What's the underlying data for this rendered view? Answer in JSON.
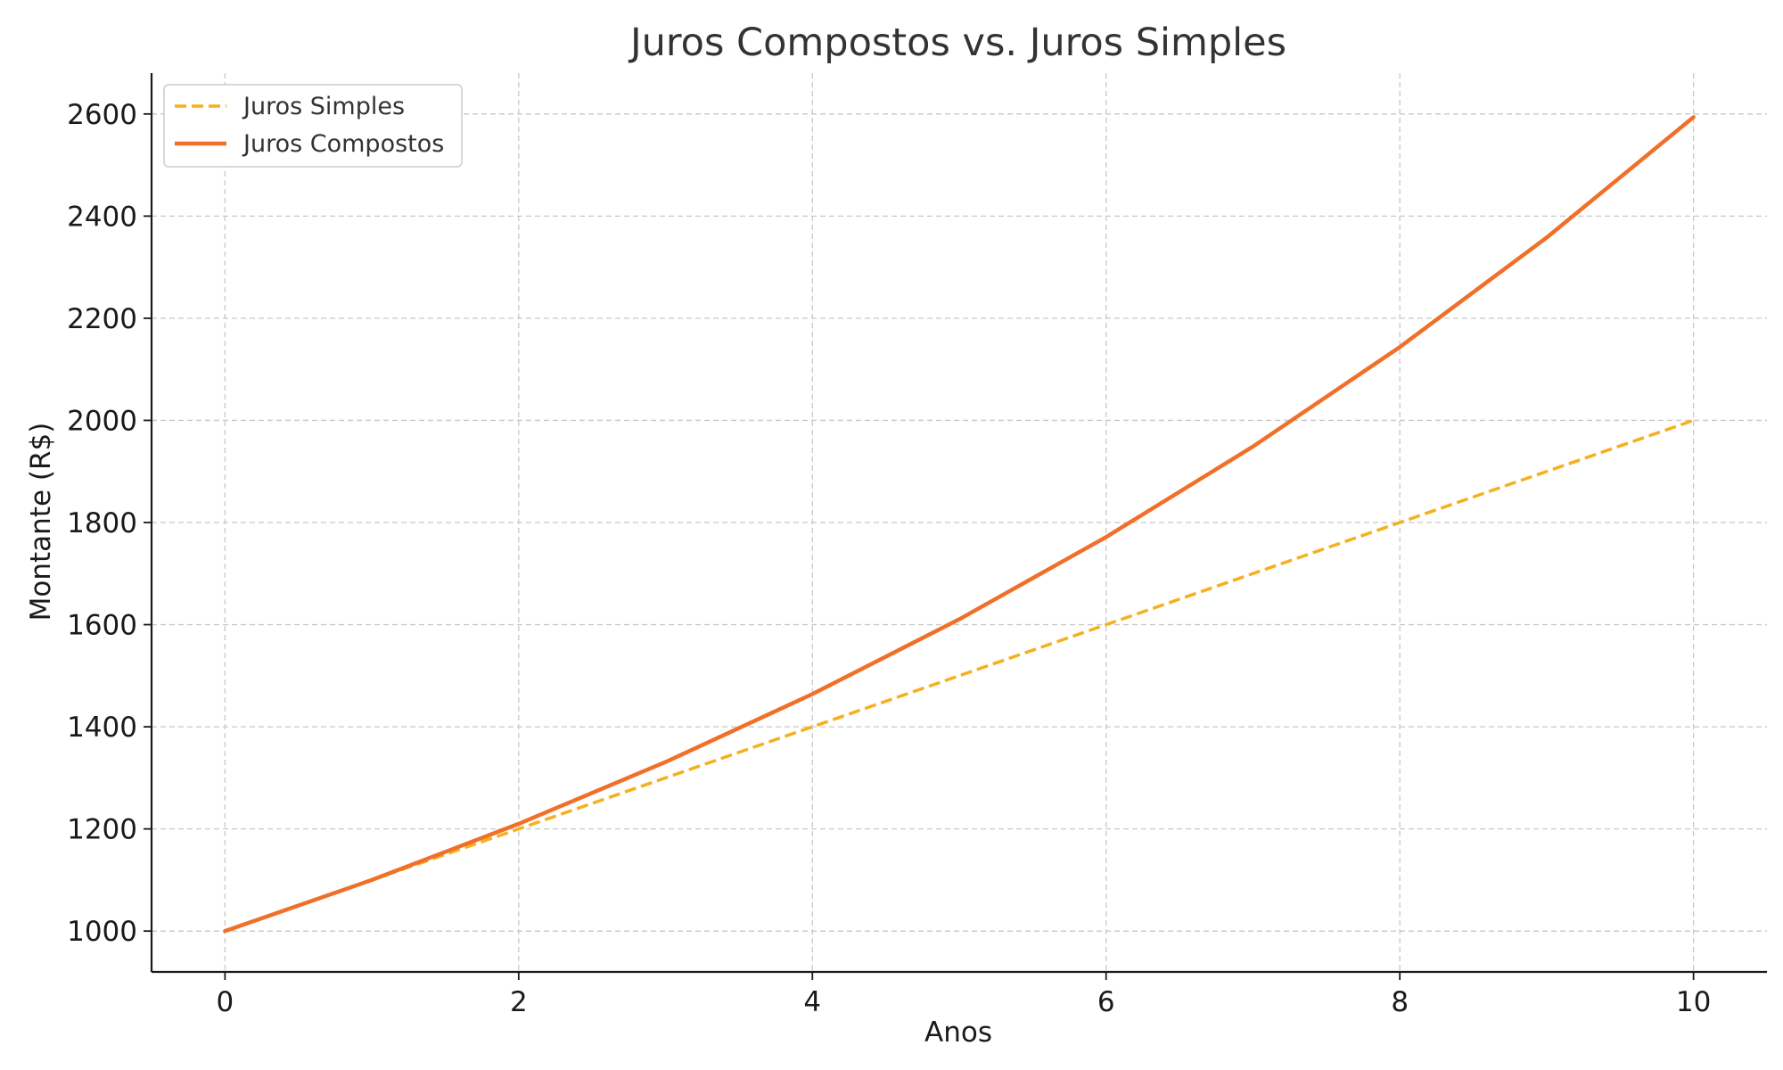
{
  "chart_data": {
    "type": "line",
    "title": "Juros Compostos vs. Juros Simples",
    "xlabel": "Anos",
    "ylabel": "Montante (R$)",
    "x": [
      0,
      1,
      2,
      3,
      4,
      5,
      6,
      7,
      8,
      9,
      10
    ],
    "xlim": [
      -0.5,
      10.5
    ],
    "ylim": [
      920,
      2680
    ],
    "xticks": [
      0,
      2,
      4,
      6,
      8,
      10
    ],
    "yticks": [
      1000,
      1200,
      1400,
      1600,
      1800,
      2000,
      2200,
      2400,
      2600
    ],
    "grid": true,
    "legend_position": "top-left",
    "series": [
      {
        "name": "Juros Simples",
        "values": [
          1000,
          1100,
          1200,
          1300,
          1400,
          1500,
          1600,
          1700,
          1800,
          1900,
          2000
        ],
        "color": "#f6b01b",
        "style": "dashed"
      },
      {
        "name": "Juros Compostos",
        "values": [
          1000,
          1100,
          1210,
          1331,
          1464.1,
          1610.51,
          1771.56,
          1948.72,
          2143.59,
          2357.95,
          2593.74
        ],
        "color": "#f0702a",
        "style": "solid"
      }
    ]
  }
}
